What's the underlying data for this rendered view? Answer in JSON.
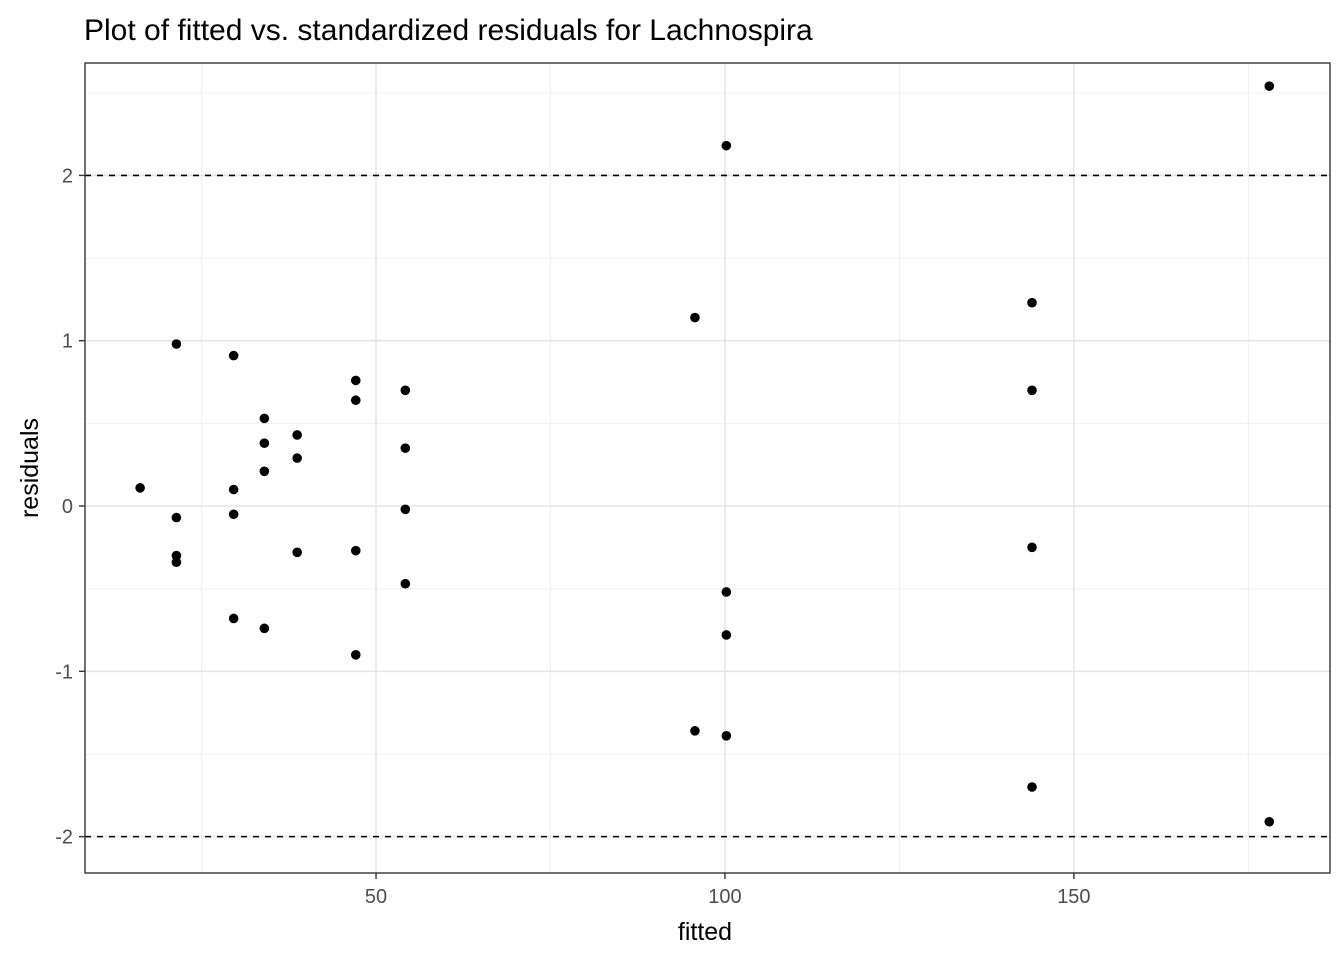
{
  "chart_data": {
    "type": "scatter",
    "title": "Plot of fitted vs. standardized residuals for Lachnospira",
    "xlabel": "fitted",
    "ylabel": "residuals",
    "xlim": [
      8.3,
      186.7
    ],
    "ylim": [
      -2.22,
      2.68
    ],
    "x_ticks": [
      50,
      100,
      150
    ],
    "x_tick_labels": [
      "50",
      "100",
      "150"
    ],
    "x_minor_ticks": [
      25,
      75,
      125,
      175
    ],
    "y_ticks": [
      -2,
      -1,
      0,
      1,
      2
    ],
    "y_tick_labels": [
      "-2",
      "-1",
      "0",
      "1",
      "2"
    ],
    "y_minor_ticks": [
      -1.5,
      -0.5,
      0.5,
      1.5,
      2.5
    ],
    "reference_lines": [
      2,
      -2
    ],
    "reference_line_style": "dashed",
    "grid": true,
    "theme": "bw",
    "point_color": "#000000",
    "points": [
      {
        "x": 16.2,
        "y": 0.11
      },
      {
        "x": 21.4,
        "y": 0.98
      },
      {
        "x": 21.4,
        "y": -0.07
      },
      {
        "x": 21.4,
        "y": -0.3
      },
      {
        "x": 21.4,
        "y": -0.34
      },
      {
        "x": 29.6,
        "y": 0.91
      },
      {
        "x": 29.6,
        "y": 0.1
      },
      {
        "x": 29.6,
        "y": -0.05
      },
      {
        "x": 29.6,
        "y": -0.68
      },
      {
        "x": 34.0,
        "y": 0.53
      },
      {
        "x": 34.0,
        "y": 0.38
      },
      {
        "x": 34.0,
        "y": 0.21
      },
      {
        "x": 34.0,
        "y": -0.74
      },
      {
        "x": 38.7,
        "y": 0.43
      },
      {
        "x": 38.7,
        "y": 0.29
      },
      {
        "x": 38.7,
        "y": -0.28
      },
      {
        "x": 47.1,
        "y": 0.76
      },
      {
        "x": 47.1,
        "y": 0.64
      },
      {
        "x": 47.1,
        "y": -0.27
      },
      {
        "x": 47.1,
        "y": -0.9
      },
      {
        "x": 54.2,
        "y": 0.7
      },
      {
        "x": 54.2,
        "y": 0.35
      },
      {
        "x": 54.2,
        "y": -0.02
      },
      {
        "x": 54.2,
        "y": -0.47
      },
      {
        "x": 95.7,
        "y": 1.14
      },
      {
        "x": 95.7,
        "y": -1.36
      },
      {
        "x": 100.2,
        "y": 2.18
      },
      {
        "x": 100.2,
        "y": -0.52
      },
      {
        "x": 100.2,
        "y": -0.78
      },
      {
        "x": 100.2,
        "y": -1.39
      },
      {
        "x": 144.0,
        "y": 1.23
      },
      {
        "x": 144.0,
        "y": 0.7
      },
      {
        "x": 144.0,
        "y": -0.25
      },
      {
        "x": 144.0,
        "y": -1.7
      },
      {
        "x": 178.0,
        "y": 2.54
      },
      {
        "x": 178.0,
        "y": -1.91
      }
    ]
  }
}
